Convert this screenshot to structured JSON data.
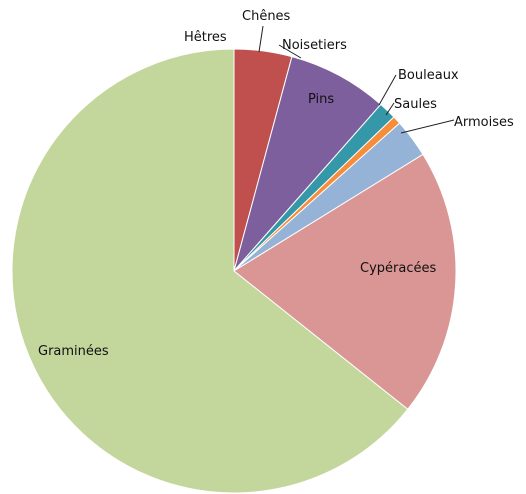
{
  "chart_data": {
    "type": "pie",
    "title": "",
    "start_angle_deg": 0,
    "direction": "clockwise",
    "slices": [
      {
        "label": "Chênes",
        "value": 4.2,
        "color": "#c0504d"
      },
      {
        "label": "Pins",
        "value": 7.3,
        "color": "#7d5f9d"
      },
      {
        "label": "Bouleaux",
        "value": 1.3,
        "color": "#3498a8"
      },
      {
        "label": "Saules",
        "value": 0.6,
        "color": "#f58d3a"
      },
      {
        "label": "Armoises",
        "value": 2.8,
        "color": "#95b3d7"
      },
      {
        "label": "Cypéracées",
        "value": 19.5,
        "color": "#d99694"
      },
      {
        "label": "Graminées",
        "value": 64.3,
        "color": "#c3d69b"
      }
    ],
    "outside_labels": [
      "Hêtres",
      "Noisetiers"
    ]
  }
}
